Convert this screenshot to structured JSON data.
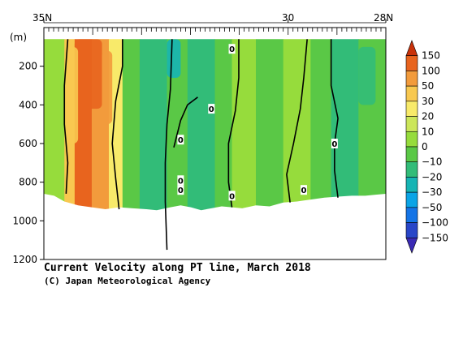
{
  "chart_data": {
    "type": "heatmap",
    "title": "Current Velocity along PT line, March 2018",
    "credit": "(C) Japan Meteorological Agency",
    "xlabel": "",
    "ylabel": "(m)",
    "x_axis": {
      "range": [
        "35N",
        "28N"
      ],
      "tick_labels": [
        "35N",
        "30",
        "28N"
      ]
    },
    "y_axis": {
      "range": [
        0,
        1200
      ],
      "inverted": true,
      "ticks": [
        200,
        400,
        600,
        800,
        1000,
        1200
      ]
    },
    "colorbar": {
      "levels": [
        "150",
        "100",
        "50",
        "30",
        "20",
        "10",
        "0",
        "−10",
        "−20",
        "−30",
        "−50",
        "−100",
        "−150"
      ],
      "colors": [
        "#c8320a",
        "#e8641e",
        "#f29b3c",
        "#f8c850",
        "#f8ea6a",
        "#cce65a",
        "#96dc3c",
        "#5ac846",
        "#32bc78",
        "#16b4b4",
        "#0aa4e6",
        "#1474e6",
        "#2846c8",
        "#3a2ab4"
      ]
    },
    "contour_labels": [
      "0",
      "0",
      "0",
      "0",
      "0",
      "0",
      "0",
      "0"
    ],
    "bottom_profile": [
      [
        0.0,
        860
      ],
      [
        0.03,
        870
      ],
      [
        0.06,
        900
      ],
      [
        0.1,
        920
      ],
      [
        0.14,
        930
      ],
      [
        0.18,
        940
      ],
      [
        0.22,
        930
      ],
      [
        0.26,
        935
      ],
      [
        0.3,
        940
      ],
      [
        0.33,
        945
      ],
      [
        0.37,
        930
      ],
      [
        0.4,
        920
      ],
      [
        0.43,
        930
      ],
      [
        0.46,
        945
      ],
      [
        0.49,
        935
      ],
      [
        0.52,
        925
      ],
      [
        0.55,
        930
      ],
      [
        0.58,
        935
      ],
      [
        0.62,
        920
      ],
      [
        0.66,
        925
      ],
      [
        0.7,
        905
      ],
      [
        0.74,
        900
      ],
      [
        0.78,
        890
      ],
      [
        0.82,
        880
      ],
      [
        0.86,
        875
      ],
      [
        0.9,
        870
      ],
      [
        0.94,
        870
      ],
      [
        0.97,
        865
      ],
      [
        1.0,
        860
      ]
    ],
    "zero_contours": [
      [
        [
          0.065,
          860
        ],
        [
          0.07,
          700
        ],
        [
          0.06,
          500
        ],
        [
          0.06,
          300
        ],
        [
          0.07,
          60
        ]
      ],
      [
        [
          0.22,
          940
        ],
        [
          0.21,
          780
        ],
        [
          0.2,
          600
        ],
        [
          0.21,
          380
        ],
        [
          0.23,
          200
        ],
        [
          0.23,
          60
        ]
      ],
      [
        [
          0.36,
          1150
        ],
        [
          0.355,
          900
        ],
        [
          0.355,
          700
        ],
        [
          0.36,
          500
        ],
        [
          0.37,
          320
        ],
        [
          0.375,
          60
        ]
      ],
      [
        [
          0.38,
          620
        ],
        [
          0.4,
          480
        ],
        [
          0.42,
          400
        ],
        [
          0.45,
          360
        ]
      ],
      [
        [
          0.55,
          930
        ],
        [
          0.54,
          800
        ],
        [
          0.54,
          600
        ],
        [
          0.56,
          430
        ],
        [
          0.57,
          260
        ],
        [
          0.57,
          60
        ]
      ],
      [
        [
          0.72,
          905
        ],
        [
          0.71,
          760
        ],
        [
          0.73,
          600
        ],
        [
          0.75,
          420
        ],
        [
          0.76,
          260
        ],
        [
          0.77,
          60
        ]
      ],
      [
        [
          0.86,
          880
        ],
        [
          0.85,
          740
        ],
        [
          0.85,
          600
        ],
        [
          0.86,
          470
        ],
        [
          0.84,
          300
        ],
        [
          0.84,
          60
        ]
      ]
    ],
    "zero_label_positions": [
      [
        0.55,
        110
      ],
      [
        0.49,
        420
      ],
      [
        0.4,
        580
      ],
      [
        0.4,
        790
      ],
      [
        0.4,
        840
      ],
      [
        0.55,
        870
      ],
      [
        0.76,
        840
      ],
      [
        0.85,
        600
      ]
    ],
    "bands": [
      {
        "x": [
          0.0,
          0.06
        ],
        "level": 6
      },
      {
        "x": [
          0.06,
          0.09
        ],
        "level": 3
      },
      {
        "x": [
          0.09,
          0.14
        ],
        "level": 1
      },
      {
        "x": [
          0.14,
          0.19
        ],
        "level": 2
      },
      {
        "x": [
          0.19,
          0.23
        ],
        "level": 4
      },
      {
        "x": [
          0.23,
          0.28
        ],
        "level": 7
      },
      {
        "x": [
          0.28,
          0.36
        ],
        "level": 8
      },
      {
        "x": [
          0.36,
          0.42
        ],
        "level": 7
      },
      {
        "x": [
          0.42,
          0.5
        ],
        "level": 8
      },
      {
        "x": [
          0.5,
          0.55
        ],
        "level": 7
      },
      {
        "x": [
          0.55,
          0.62
        ],
        "level": 6
      },
      {
        "x": [
          0.62,
          0.7
        ],
        "level": 7
      },
      {
        "x": [
          0.7,
          0.78
        ],
        "level": 6
      },
      {
        "x": [
          0.78,
          0.84
        ],
        "level": 7
      },
      {
        "x": [
          0.84,
          0.92
        ],
        "level": 8
      },
      {
        "x": [
          0.92,
          1.0
        ],
        "level": 7
      }
    ],
    "shallow_highlights": [
      {
        "x": [
          0.09,
          0.17
        ],
        "depth": [
          60,
          420
        ],
        "level": 1
      },
      {
        "x": [
          0.17,
          0.2
        ],
        "depth": [
          120,
          500
        ],
        "level": 2
      },
      {
        "x": [
          0.07,
          0.1
        ],
        "depth": [
          100,
          600
        ],
        "level": 3
      },
      {
        "x": [
          0.36,
          0.4
        ],
        "depth": [
          60,
          260
        ],
        "level": 9
      },
      {
        "x": [
          0.92,
          0.97
        ],
        "depth": [
          100,
          400
        ],
        "level": 8
      }
    ]
  }
}
